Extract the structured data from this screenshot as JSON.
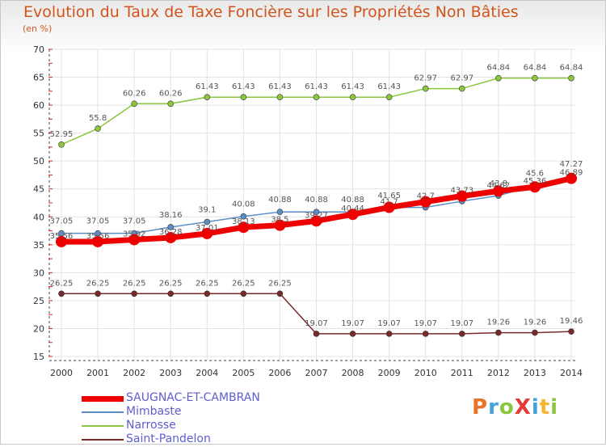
{
  "title": "Evolution du Taux de Taxe Foncière sur les Propriétés Non Bâties",
  "subtitle": "(en %)",
  "logo": {
    "text": "ProXiti",
    "colors": [
      "#e8742a",
      "#3fa3d8",
      "#8cc63f",
      "#e53935",
      "#3fa3d8",
      "#f2b632",
      "#8cc63f"
    ]
  },
  "chart_data": {
    "type": "line",
    "title": "Evolution du Taux de Taxe Foncière sur les Propriétés Non Bâties",
    "ylabel": "(en %)",
    "xlabel": "",
    "ylim": [
      15,
      70
    ],
    "yticks": [
      15,
      20,
      25,
      30,
      35,
      40,
      45,
      50,
      55,
      60,
      65,
      70
    ],
    "grid": true,
    "legend_position": "bottom-left",
    "x": [
      "2000",
      "2001",
      "2002",
      "2003",
      "2004",
      "2005",
      "2006",
      "2007",
      "2008",
      "2009",
      "2010",
      "2011",
      "2012",
      "2013",
      "2014"
    ],
    "series": [
      {
        "name": "SAUGNAC-ET-CAMBRAN",
        "color": "#ee0000",
        "values": [
          35.56,
          35.56,
          35.92,
          36.28,
          37.01,
          38.13,
          38.5,
          39.27,
          40.44,
          41.7,
          42.7,
          43.73,
          44.62,
          45.36,
          46.89
        ],
        "labels": [
          "35.56",
          "35.56",
          "35.92",
          "36.28",
          "37.01",
          "38.13",
          "38.5",
          "39.27",
          "40.44",
          "41.7",
          "42.7",
          "43.73",
          "44.62",
          "45.36",
          "46.89"
        ]
      },
      {
        "name": "Mimbaste",
        "color": "#5b8ec6",
        "values": [
          37.05,
          37.05,
          37.05,
          38.16,
          39.1,
          40.08,
          40.88,
          40.88,
          40.88,
          41.65,
          41.7,
          42.8,
          43.8,
          45.6,
          47.27
        ],
        "labels": [
          "37.05",
          "37.05",
          "37.05",
          "38.16",
          "39.1",
          "40.08",
          "40.88",
          "40.88",
          "40.88",
          "41.65",
          "",
          "",
          "43.8",
          "45.6",
          "47.27"
        ]
      },
      {
        "name": "Narrosse",
        "color": "#8cc63f",
        "values": [
          52.95,
          55.8,
          60.26,
          60.26,
          61.43,
          61.43,
          61.43,
          61.43,
          61.43,
          61.43,
          62.97,
          62.97,
          64.84,
          64.84,
          64.84
        ],
        "labels": [
          "52.95",
          "55.8",
          "60.26",
          "60.26",
          "61.43",
          "61.43",
          "61.43",
          "61.43",
          "61.43",
          "61.43",
          "62.97",
          "62.97",
          "64.84",
          "64.84",
          "64.84"
        ]
      },
      {
        "name": "Saint-Pandelon",
        "color": "#7a2a2a",
        "values": [
          26.25,
          26.25,
          26.25,
          26.25,
          26.25,
          26.25,
          26.25,
          19.07,
          19.07,
          19.07,
          19.07,
          19.07,
          19.26,
          19.26,
          19.46
        ],
        "labels": [
          "26.25",
          "26.25",
          "26.25",
          "26.25",
          "26.25",
          "26.25",
          "26.25",
          "19.07",
          "19.07",
          "19.07",
          "19.07",
          "19.07",
          "19.26",
          "19.26",
          "19.46"
        ]
      }
    ]
  }
}
